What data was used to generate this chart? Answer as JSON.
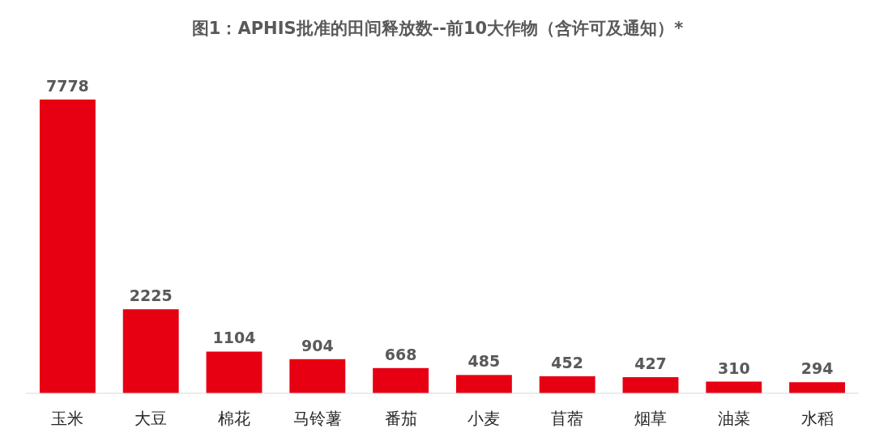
{
  "chart_data": {
    "type": "bar",
    "title": "图1：APHIS批准的田间释放数--前10大作物（含许可及通知）*",
    "categories": [
      "玉米",
      "大豆",
      "棉花",
      "马铃薯",
      "番茄",
      "小麦",
      "苜蓿",
      "烟草",
      "油菜",
      "水稻"
    ],
    "values": [
      7778,
      2225,
      1104,
      904,
      668,
      485,
      452,
      427,
      310,
      294
    ],
    "color": "#e60012",
    "data_labels": true
  }
}
